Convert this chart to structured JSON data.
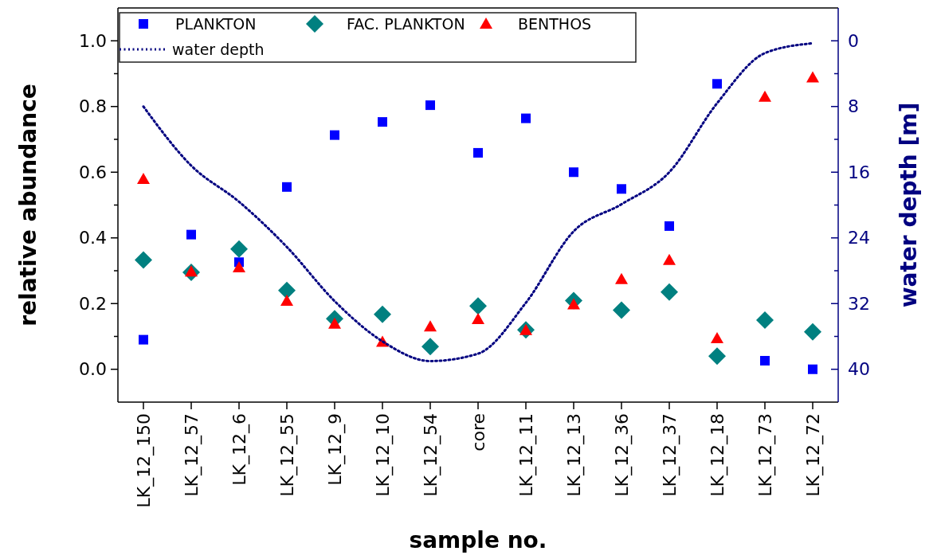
{
  "chart_data": {
    "type": "scatter",
    "xlabel": "sample no.",
    "ylabel": "relative abundance",
    "y2label": "water depth [m]",
    "categories": [
      "LK_12_150",
      "LK_12_57",
      "LK_12_6",
      "LK_12_55",
      "LK_12_9",
      "LK_12_10",
      "LK_12_54",
      "core",
      "LK_12_11",
      "LK_12_13",
      "LK_12_36",
      "LK_12_37",
      "LK_12_18",
      "LK_12_73",
      "LK_12_72"
    ],
    "series": [
      {
        "name": "PLANKTON",
        "color": "#0000ff",
        "marker": "square",
        "values": [
          0.09,
          0.41,
          0.326,
          0.555,
          0.713,
          0.753,
          0.804,
          0.659,
          0.764,
          0.6,
          0.549,
          0.436,
          0.869,
          0.026,
          0.0
        ]
      },
      {
        "name": "FAC. PLANKTON",
        "color": "#008080",
        "marker": "diamond",
        "values": [
          0.333,
          0.295,
          0.366,
          0.24,
          0.154,
          0.167,
          0.069,
          0.193,
          0.12,
          0.209,
          0.18,
          0.235,
          0.04,
          0.15,
          0.114
        ]
      },
      {
        "name": "BENTHOS",
        "color": "#ff0000",
        "marker": "triangle",
        "values": [
          0.579,
          0.297,
          0.31,
          0.208,
          0.138,
          0.083,
          0.13,
          0.152,
          0.119,
          0.197,
          0.274,
          0.332,
          0.094,
          0.829,
          0.888
        ]
      },
      {
        "name": "water depth",
        "type": "line",
        "axis": "y2",
        "color": "#000080",
        "marker": "none",
        "line_style": "dotted",
        "values": [
          8.0,
          15.2,
          19.6,
          25.1,
          31.7,
          36.6,
          39.0,
          38.1,
          31.9,
          23.2,
          19.9,
          16.0,
          7.6,
          1.5,
          0.3
        ]
      }
    ],
    "ylim": [
      -0.1,
      1.1
    ],
    "yticks": [
      {
        "value": 0.0,
        "label": "0.0"
      },
      {
        "value": 0.1,
        "label": null
      },
      {
        "value": 0.2,
        "label": "0.2"
      },
      {
        "value": 0.3,
        "label": null
      },
      {
        "value": 0.4,
        "label": "0.4"
      },
      {
        "value": 0.5,
        "label": null
      },
      {
        "value": 0.6,
        "label": "0.6"
      },
      {
        "value": 0.7,
        "label": null
      },
      {
        "value": 0.8,
        "label": "0.8"
      },
      {
        "value": 0.9,
        "label": null
      },
      {
        "value": 1.0,
        "label": "1.0"
      }
    ],
    "y2lim": [
      44,
      -4
    ],
    "y2ticks": [
      0,
      {
        "value": 4,
        "label": null
      },
      8,
      {
        "value": 12,
        "label": null
      },
      16,
      {
        "value": 20,
        "label": null
      },
      24,
      {
        "value": 28,
        "label": null
      },
      32,
      {
        "value": 36,
        "label": null
      },
      40
    ],
    "legend": "top left",
    "grid": false
  }
}
